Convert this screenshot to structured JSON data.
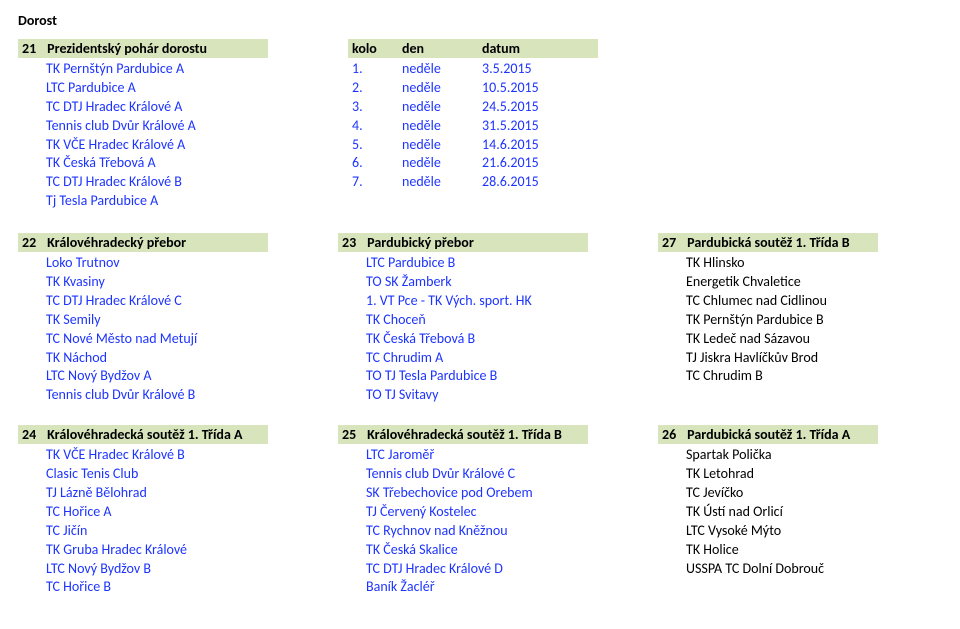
{
  "page_title": "Dorost",
  "top_left": {
    "num": "21",
    "title": "Prezidentský pohár dorostu",
    "teams": [
      "TK Pernštýn Pardubice A",
      "LTC Pardubice A",
      "TC DTJ Hradec Králové A",
      "Tennis club Dvůr Králové A",
      "TK VČE Hradec Králové A",
      "TK Česká Třebová A",
      "TC DTJ Hradec Králové B",
      "Tj Tesla Pardubice A"
    ]
  },
  "schedule": {
    "h1": "kolo",
    "h2": "den",
    "h3": "datum",
    "rows": [
      {
        "c1": "1.",
        "c2": "neděle",
        "c3": "3.5.2015"
      },
      {
        "c1": "2.",
        "c2": "neděle",
        "c3": "10.5.2015"
      },
      {
        "c1": "3.",
        "c2": "neděle",
        "c3": "24.5.2015"
      },
      {
        "c1": "4.",
        "c2": "neděle",
        "c3": "31.5.2015"
      },
      {
        "c1": "5.",
        "c2": "neděle",
        "c3": "14.6.2015"
      },
      {
        "c1": "6.",
        "c2": "neděle",
        "c3": "21.6.2015"
      },
      {
        "c1": "7.",
        "c2": "neděle",
        "c3": "28.6.2015"
      }
    ]
  },
  "b22": {
    "num": "22",
    "title": "Královéhradecký přebor",
    "teams": [
      "Loko Trutnov",
      "TK Kvasiny",
      "TC DTJ Hradec Králové C",
      "TK Semily",
      "TC Nové Město nad Metují",
      "TK Náchod",
      "LTC Nový Bydžov A",
      "Tennis club Dvůr Králové B"
    ]
  },
  "b23": {
    "num": "23",
    "title": "Pardubický přebor",
    "teams": [
      "LTC Pardubice B",
      "TO SK Žamberk",
      "1. VT Pce - TK Vých. sport. HK",
      "TK Choceň",
      "TK Česká Třebová B",
      "TC Chrudim A",
      "TO TJ Tesla Pardubice B",
      "TO TJ Svitavy"
    ]
  },
  "b27": {
    "num": "27",
    "title": "Pardubická soutěž 1. Třída B",
    "teams": [
      "TK Hlinsko",
      "Energetik Chvaletice",
      "TC Chlumec nad Cidlinou",
      "TK Pernštýn Pardubice B",
      "TK Ledeč nad Sázavou",
      "TJ Jiskra Havlíčkův Brod",
      "TC Chrudim B"
    ]
  },
  "b24": {
    "num": "24",
    "title": "Královéhradecká soutěž 1. Třída A",
    "teams": [
      "TK VČE Hradec Králové B",
      "Clasic Tenis Club",
      "TJ Lázně Bělohrad",
      "TC Hořice A",
      "TC Jičín",
      "TK Gruba Hradec Králové",
      "LTC Nový Bydžov B",
      "TC Hořice B"
    ]
  },
  "b25": {
    "num": "25",
    "title": "Královéhradecká soutěž 1. Třída B",
    "teams": [
      "LTC Jaroměř",
      "Tennis club Dvůr Králové C",
      "SK Třebechovice pod Orebem",
      "TJ Červený Kostelec",
      "TC Rychnov nad Kněžnou",
      "TK Česká Skalice",
      "TC DTJ Hradec Králové D",
      "Baník Žacléř"
    ]
  },
  "b26": {
    "num": "26",
    "title": "Pardubická soutěž 1. Třída A",
    "teams": [
      "Spartak Polička",
      "TK Letohrad",
      "TC Jevíčko",
      "TK Ústí nad Orlicí",
      "LTC Vysoké Mýto",
      "TK Holice",
      "USSPA TC Dolní Dobrouč"
    ]
  }
}
